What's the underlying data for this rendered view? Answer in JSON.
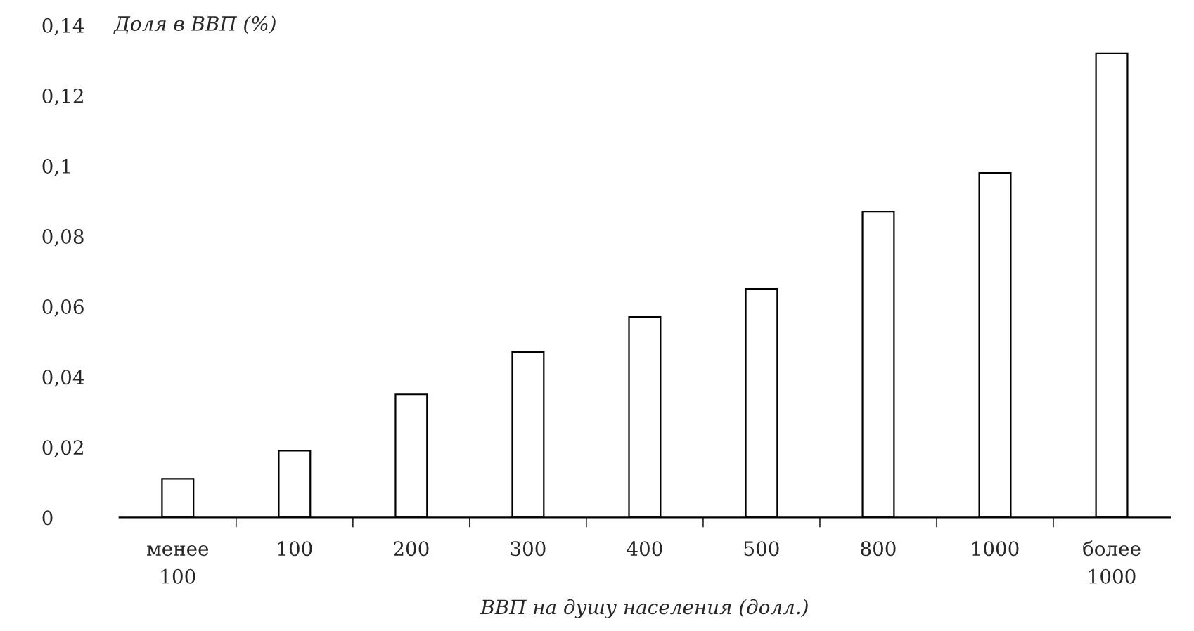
{
  "chart_data": {
    "type": "bar",
    "ylabel": "Доля в ВВП (%)",
    "xlabel": "ВВП на душу населения (долл.)",
    "categories": [
      "менее\n100",
      "100",
      "200",
      "300",
      "400",
      "500",
      "800",
      "1000",
      "более\n1000"
    ],
    "values": [
      0.011,
      0.019,
      0.035,
      0.047,
      0.057,
      0.065,
      0.087,
      0.098,
      0.132
    ],
    "color": "#ffffff",
    "ylim": [
      0,
      0.14
    ],
    "yticks": [
      {
        "value": 0,
        "label": "0"
      },
      {
        "value": 0.02,
        "label": "0,02"
      },
      {
        "value": 0.04,
        "label": "0,04"
      },
      {
        "value": 0.06,
        "label": "0,06"
      },
      {
        "value": 0.08,
        "label": "0,08"
      },
      {
        "value": 0.1,
        "label": "0,1"
      },
      {
        "value": 0.12,
        "label": "0,12"
      },
      {
        "value": 0.14,
        "label": "0,14"
      }
    ],
    "grid": false
  }
}
